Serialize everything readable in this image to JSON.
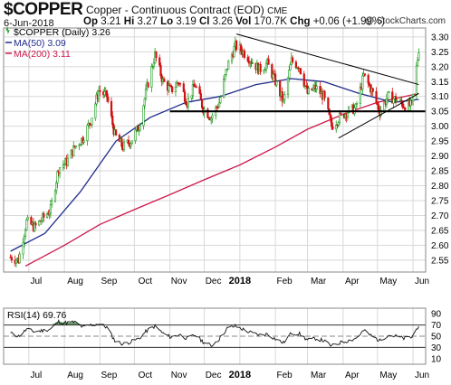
{
  "header": {
    "symbol": "$COPPER",
    "name": "Copper - Continuous Contract (EOD)",
    "exchange": "CME",
    "date": "6-Jun-2018",
    "open_label": "Op",
    "open": "3.21",
    "high_label": "Hi",
    "high": "3.27",
    "low_label": "Lo",
    "low": "3.19",
    "close_label": "Cl",
    "close": "3.26",
    "vol_label": "Vol",
    "vol": "170.7K",
    "chg_label": "Chg",
    "chg": "+0.06 (+1.99%)",
    "copyright": "@ StockCharts.com"
  },
  "legend": {
    "price": "$COPPER (Daily) 3.26",
    "ma50": "MA(50) 3.09",
    "ma200": "MA(200) 3.11",
    "rsi": "RSI(14) 69.76"
  },
  "colors": {
    "up": "#1a9a1a",
    "down": "#d01010",
    "ma50": "#202c8c",
    "ma200": "#cc1a4a",
    "trendline": "#000000",
    "grid": "#d8d8d8",
    "rsi_fill": "#4e8a4e"
  },
  "chart_data": [
    {
      "type": "candlestick",
      "title": "$COPPER (Daily) 3.26",
      "x": [
        "Jul",
        "Aug",
        "Sep",
        "Oct",
        "Nov",
        "Dec",
        "2018",
        "Feb",
        "Mar",
        "Apr",
        "May",
        "Jun"
      ],
      "y_ticks": [
        2.55,
        2.6,
        2.65,
        2.7,
        2.75,
        2.8,
        2.85,
        2.9,
        2.95,
        3.0,
        3.05,
        3.1,
        3.15,
        3.2,
        3.25,
        3.3
      ],
      "ylim": [
        2.51,
        3.33
      ],
      "grid": true,
      "legend_position": "top-left",
      "close_points": [
        {
          "x": "2017-06-15",
          "y": 2.56
        },
        {
          "x": "2017-06-22",
          "y": 2.55
        },
        {
          "x": "2017-06-29",
          "y": 2.68
        },
        {
          "x": "2017-07-06",
          "y": 2.66
        },
        {
          "x": "2017-07-13",
          "y": 2.69
        },
        {
          "x": "2017-07-20",
          "y": 2.72
        },
        {
          "x": "2017-07-27",
          "y": 2.86
        },
        {
          "x": "2017-08-03",
          "y": 2.88
        },
        {
          "x": "2017-08-10",
          "y": 2.93
        },
        {
          "x": "2017-08-17",
          "y": 2.96
        },
        {
          "x": "2017-08-24",
          "y": 3.02
        },
        {
          "x": "2017-08-31",
          "y": 3.12
        },
        {
          "x": "2017-09-07",
          "y": 3.1
        },
        {
          "x": "2017-09-14",
          "y": 2.97
        },
        {
          "x": "2017-09-21",
          "y": 2.93
        },
        {
          "x": "2017-09-28",
          "y": 2.95
        },
        {
          "x": "2017-10-05",
          "y": 3.0
        },
        {
          "x": "2017-10-12",
          "y": 3.13
        },
        {
          "x": "2017-10-19",
          "y": 3.24
        },
        {
          "x": "2017-10-26",
          "y": 3.15
        },
        {
          "x": "2017-11-02",
          "y": 3.12
        },
        {
          "x": "2017-11-09",
          "y": 3.15
        },
        {
          "x": "2017-11-16",
          "y": 3.08
        },
        {
          "x": "2017-11-23",
          "y": 3.14
        },
        {
          "x": "2017-11-30",
          "y": 3.06
        },
        {
          "x": "2017-12-07",
          "y": 3.03
        },
        {
          "x": "2017-12-14",
          "y": 3.08
        },
        {
          "x": "2017-12-21",
          "y": 3.2
        },
        {
          "x": "2017-12-28",
          "y": 3.27
        },
        {
          "x": "2018-01-04",
          "y": 3.25
        },
        {
          "x": "2018-01-11",
          "y": 3.22
        },
        {
          "x": "2018-01-18",
          "y": 3.19
        },
        {
          "x": "2018-01-25",
          "y": 3.21
        },
        {
          "x": "2018-02-01",
          "y": 3.15
        },
        {
          "x": "2018-02-08",
          "y": 3.08
        },
        {
          "x": "2018-02-15",
          "y": 3.22
        },
        {
          "x": "2018-02-22",
          "y": 3.2
        },
        {
          "x": "2018-03-01",
          "y": 3.11
        },
        {
          "x": "2018-03-08",
          "y": 3.13
        },
        {
          "x": "2018-03-15",
          "y": 3.1
        },
        {
          "x": "2018-03-22",
          "y": 3.0
        },
        {
          "x": "2018-03-29",
          "y": 3.03
        },
        {
          "x": "2018-04-05",
          "y": 3.05
        },
        {
          "x": "2018-04-12",
          "y": 3.06
        },
        {
          "x": "2018-04-19",
          "y": 3.17
        },
        {
          "x": "2018-04-26",
          "y": 3.12
        },
        {
          "x": "2018-05-03",
          "y": 3.05
        },
        {
          "x": "2018-05-10",
          "y": 3.1
        },
        {
          "x": "2018-05-17",
          "y": 3.09
        },
        {
          "x": "2018-05-24",
          "y": 3.07
        },
        {
          "x": "2018-05-31",
          "y": 3.07
        },
        {
          "x": "2018-06-06",
          "y": 3.26
        }
      ],
      "ma50": [
        {
          "x": "2017-06-15",
          "y": 2.58
        },
        {
          "x": "2017-07-15",
          "y": 2.64
        },
        {
          "x": "2017-08-15",
          "y": 2.78
        },
        {
          "x": "2017-09-15",
          "y": 2.95
        },
        {
          "x": "2017-10-15",
          "y": 3.03
        },
        {
          "x": "2017-11-15",
          "y": 3.08
        },
        {
          "x": "2017-12-15",
          "y": 3.1
        },
        {
          "x": "2018-01-15",
          "y": 3.14
        },
        {
          "x": "2018-02-15",
          "y": 3.16
        },
        {
          "x": "2018-03-15",
          "y": 3.15
        },
        {
          "x": "2018-04-15",
          "y": 3.11
        },
        {
          "x": "2018-05-15",
          "y": 3.08
        },
        {
          "x": "2018-06-06",
          "y": 3.09
        }
      ],
      "ma200": [
        {
          "x": "2017-06-28",
          "y": 2.53
        },
        {
          "x": "2017-08-01",
          "y": 2.6
        },
        {
          "x": "2017-09-01",
          "y": 2.67
        },
        {
          "x": "2017-10-01",
          "y": 2.72
        },
        {
          "x": "2017-11-01",
          "y": 2.77
        },
        {
          "x": "2017-12-01",
          "y": 2.82
        },
        {
          "x": "2018-01-01",
          "y": 2.87
        },
        {
          "x": "2018-02-01",
          "y": 2.93
        },
        {
          "x": "2018-03-01",
          "y": 2.99
        },
        {
          "x": "2018-04-01",
          "y": 3.04
        },
        {
          "x": "2018-05-01",
          "y": 3.08
        },
        {
          "x": "2018-06-06",
          "y": 3.11
        }
      ],
      "trendlines": [
        {
          "from": {
            "x": "2017-12-29",
            "y": 3.31
          },
          "to": {
            "x": "2018-06-06",
            "y": 3.14
          }
        },
        {
          "from": {
            "x": "2018-03-28",
            "y": 2.96
          },
          "to": {
            "x": "2018-06-06",
            "y": 3.11
          }
        },
        {
          "from": {
            "x": "2017-11-01",
            "y": 3.05
          },
          "to": {
            "x": "2018-06-12",
            "y": 3.05
          }
        }
      ]
    },
    {
      "type": "line",
      "title": "RSI(14) 69.76",
      "x": [
        "Jul",
        "Aug",
        "Sep",
        "Oct",
        "Nov",
        "Dec",
        "2018",
        "Feb",
        "Mar",
        "Apr",
        "May",
        "Jun"
      ],
      "y_ticks": [
        10,
        30,
        50,
        70,
        90
      ],
      "ylim": [
        0,
        100
      ],
      "reference_lines": [
        30,
        50,
        70
      ],
      "grid": true,
      "values": [
        {
          "x": "2017-06-15",
          "y": 55
        },
        {
          "x": "2017-06-22",
          "y": 50
        },
        {
          "x": "2017-06-29",
          "y": 62
        },
        {
          "x": "2017-07-06",
          "y": 58
        },
        {
          "x": "2017-07-13",
          "y": 60
        },
        {
          "x": "2017-07-20",
          "y": 63
        },
        {
          "x": "2017-07-27",
          "y": 76
        },
        {
          "x": "2017-08-03",
          "y": 74
        },
        {
          "x": "2017-08-10",
          "y": 75
        },
        {
          "x": "2017-08-17",
          "y": 66
        },
        {
          "x": "2017-08-24",
          "y": 70
        },
        {
          "x": "2017-08-31",
          "y": 72
        },
        {
          "x": "2017-09-07",
          "y": 66
        },
        {
          "x": "2017-09-14",
          "y": 42
        },
        {
          "x": "2017-09-21",
          "y": 36
        },
        {
          "x": "2017-09-28",
          "y": 40
        },
        {
          "x": "2017-10-05",
          "y": 46
        },
        {
          "x": "2017-10-12",
          "y": 60
        },
        {
          "x": "2017-10-19",
          "y": 68
        },
        {
          "x": "2017-10-26",
          "y": 55
        },
        {
          "x": "2017-11-02",
          "y": 48
        },
        {
          "x": "2017-11-09",
          "y": 53
        },
        {
          "x": "2017-11-16",
          "y": 46
        },
        {
          "x": "2017-11-23",
          "y": 52
        },
        {
          "x": "2017-11-30",
          "y": 40
        },
        {
          "x": "2017-12-07",
          "y": 33
        },
        {
          "x": "2017-12-14",
          "y": 45
        },
        {
          "x": "2017-12-21",
          "y": 64
        },
        {
          "x": "2017-12-28",
          "y": 68
        },
        {
          "x": "2018-01-04",
          "y": 62
        },
        {
          "x": "2018-01-11",
          "y": 56
        },
        {
          "x": "2018-01-18",
          "y": 52
        },
        {
          "x": "2018-01-25",
          "y": 54
        },
        {
          "x": "2018-02-01",
          "y": 45
        },
        {
          "x": "2018-02-08",
          "y": 38
        },
        {
          "x": "2018-02-15",
          "y": 56
        },
        {
          "x": "2018-02-22",
          "y": 54
        },
        {
          "x": "2018-03-01",
          "y": 43
        },
        {
          "x": "2018-03-08",
          "y": 46
        },
        {
          "x": "2018-03-15",
          "y": 42
        },
        {
          "x": "2018-03-22",
          "y": 32
        },
        {
          "x": "2018-03-29",
          "y": 38
        },
        {
          "x": "2018-04-05",
          "y": 42
        },
        {
          "x": "2018-04-12",
          "y": 46
        },
        {
          "x": "2018-04-19",
          "y": 60
        },
        {
          "x": "2018-04-26",
          "y": 50
        },
        {
          "x": "2018-05-03",
          "y": 42
        },
        {
          "x": "2018-05-10",
          "y": 52
        },
        {
          "x": "2018-05-17",
          "y": 50
        },
        {
          "x": "2018-05-24",
          "y": 46
        },
        {
          "x": "2018-05-31",
          "y": 48
        },
        {
          "x": "2018-06-06",
          "y": 69.76
        }
      ]
    }
  ]
}
